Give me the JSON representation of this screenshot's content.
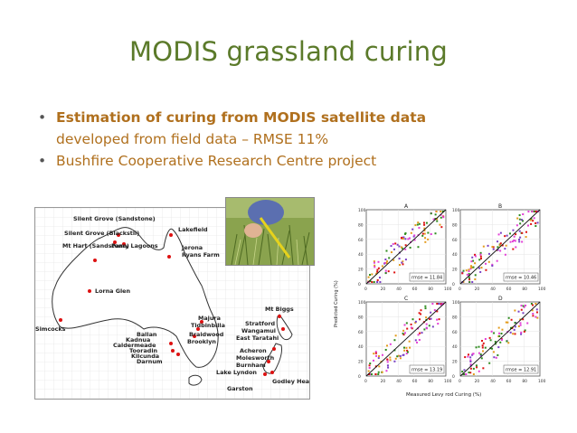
{
  "slide": {
    "title": "MODIS grassland curing",
    "bullets": [
      {
        "strong": "Estimation of curing from MODIS satellite data",
        "rest": "developed from field data – RMSE 11%"
      },
      {
        "text": "Bushfire Cooperative Research Centre project"
      }
    ],
    "bullet_glyph": "•"
  },
  "map": {
    "sites": [
      "Silent Grove (Sandstone)",
      "Silent Grove (Blackstil)",
      "Mt Hart (Sandstone)",
      "Parry Lagoons",
      "Lakefield",
      "Jerona",
      "Ryans Farm",
      "Lorna Glen",
      "Simcocks",
      "Majura",
      "Tidbinbilla",
      "Braidwood",
      "Brooklyn",
      "Ballan",
      "Kadnua",
      "Caldermeade",
      "Tooradin",
      "Kilcunda",
      "Darnum",
      "Mt Biggs",
      "Stratford",
      "Wangamui",
      "East Taratahi",
      "Acheron",
      "Molesworth",
      "Burnham",
      "Lake Lyndon",
      "Godley Head",
      "Garston"
    ]
  },
  "photo": {
    "icon": "field-photo"
  },
  "scatter": {
    "panels": [
      {
        "letter": "A",
        "rmse": "rmse = 11.84"
      },
      {
        "letter": "B",
        "rmse": "rmse = 10.46"
      },
      {
        "letter": "C",
        "rmse": "rmse = 13.19"
      },
      {
        "letter": "D",
        "rmse": "rmse = 12.91"
      }
    ],
    "xlabel": "Measured Levy rod Curing (%)",
    "ylabel": "Predicted Curing (%)",
    "ticks": [
      "0",
      "20",
      "40",
      "60",
      "80",
      "100"
    ],
    "colors": [
      "#e33fd6",
      "#2e8b1e",
      "#e39b1b",
      "#7a3fc4",
      "#d11"
    ]
  }
}
